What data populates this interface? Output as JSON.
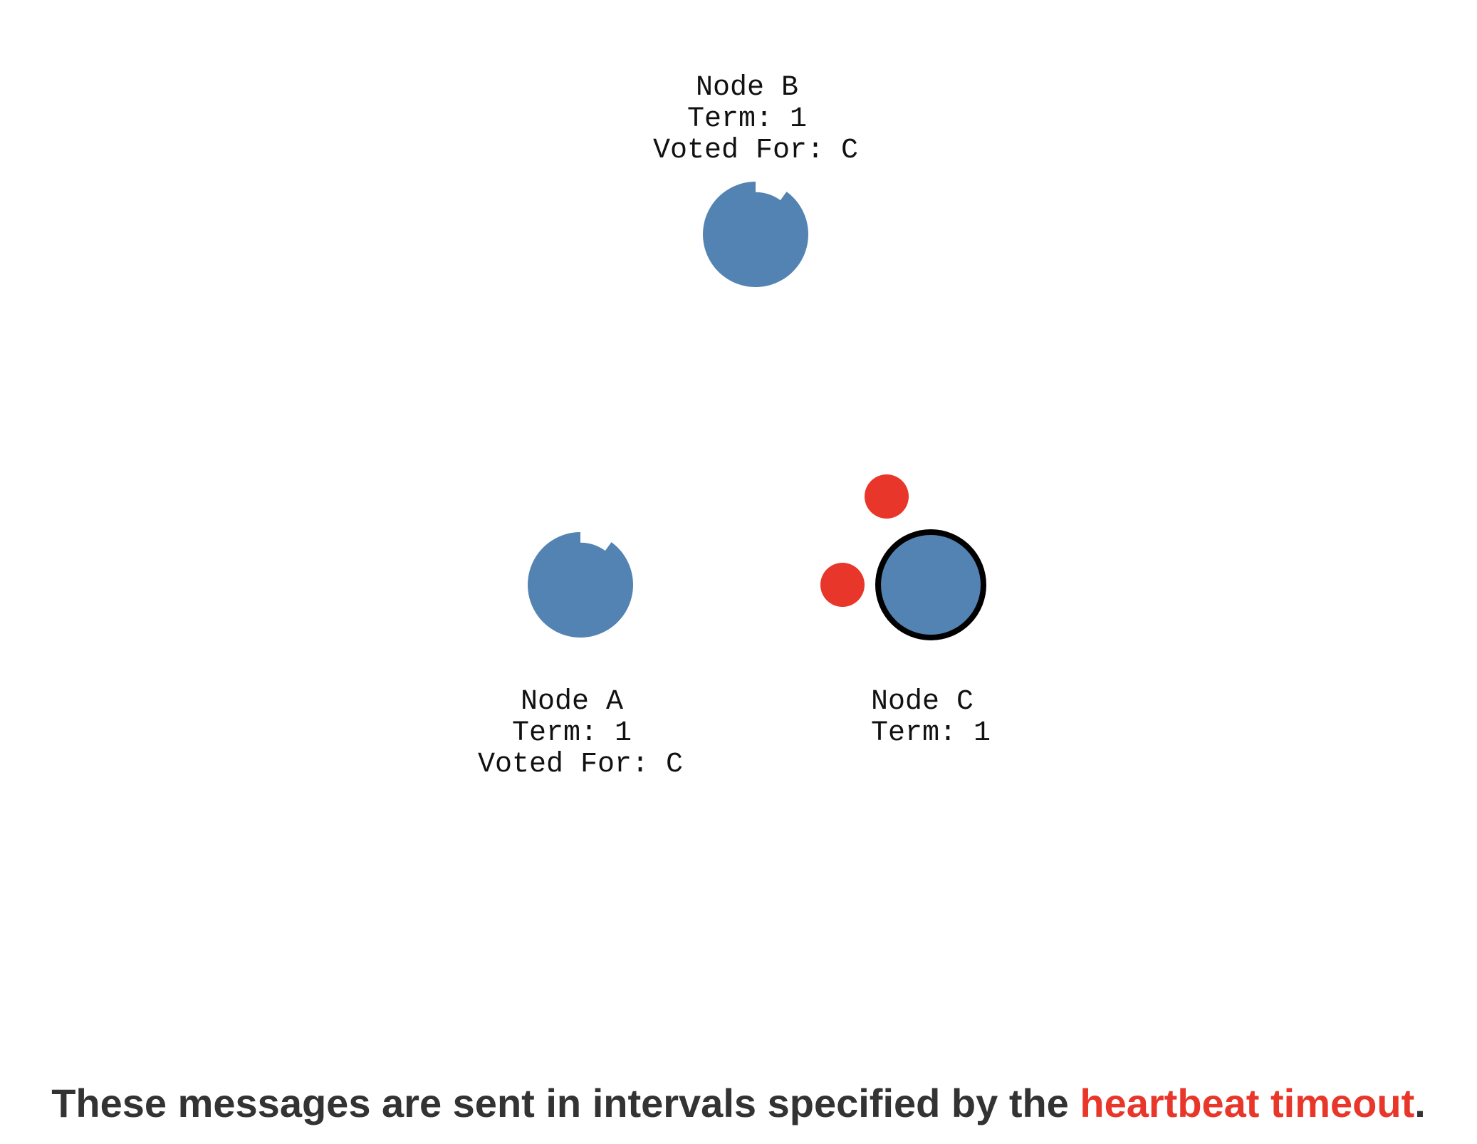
{
  "colors": {
    "node_fill": "#5383b2",
    "leader_outline": "#000000",
    "message_dot": "#e8372a",
    "caption_text": "#333333",
    "caption_highlight": "#e8372a"
  },
  "nodes": [
    {
      "id": "b",
      "label_lines": [
        "Node B",
        "Term: 1",
        "Voted For: C"
      ],
      "state": "follower",
      "timeout_progress": 0.1
    },
    {
      "id": "a",
      "label_lines": [
        "Node A",
        "Term: 1",
        "Voted For: C"
      ],
      "state": "follower",
      "timeout_progress": 0.1
    },
    {
      "id": "c",
      "label_lines": [
        "Node C",
        "Term: 1"
      ],
      "state": "leader"
    }
  ],
  "caption": {
    "before": "These messages are sent in intervals specified by the ",
    "highlight": "heartbeat timeout",
    "after": "."
  }
}
